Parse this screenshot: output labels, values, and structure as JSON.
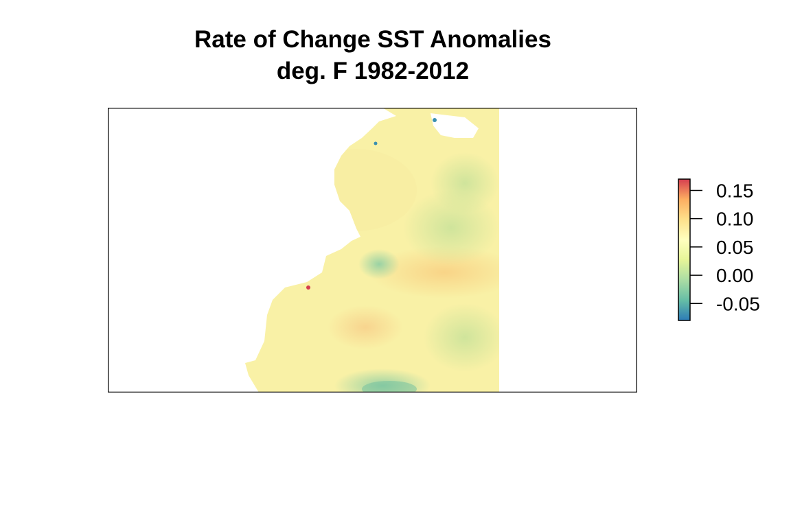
{
  "title": {
    "line1": "Rate of Change SST Anomalies",
    "line2": "deg. F 1982-2012"
  },
  "map": {
    "land_color": "#ffffff",
    "frame_color": "#000000",
    "dominant_ocean_color": "#f9f1a6"
  },
  "legend": {
    "range": [
      -0.08,
      0.17
    ],
    "ticks": [
      {
        "value": 0.15,
        "label": "0.15"
      },
      {
        "value": 0.1,
        "label": "0.10"
      },
      {
        "value": 0.05,
        "label": "0.05"
      },
      {
        "value": 0.0,
        "label": "0.00"
      },
      {
        "value": -0.05,
        "label": "-0.05"
      }
    ],
    "palette": [
      "#2c7bb6",
      "#66bea6",
      "#abdda4",
      "#e6f598",
      "#ffffbf",
      "#fee08b",
      "#fdae61",
      "#d53e4f"
    ]
  }
}
